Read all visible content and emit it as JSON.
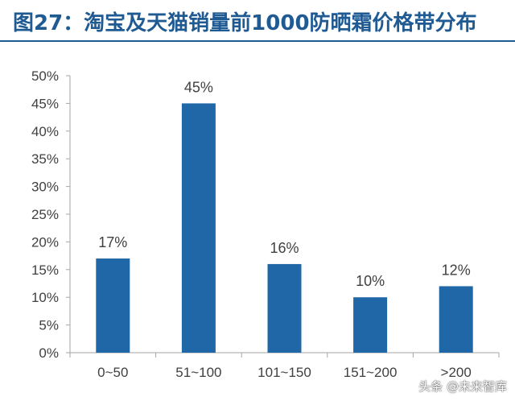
{
  "title": "图27：淘宝及天猫销量前1000防晒霜价格带分布",
  "watermark": "头条 @未来智库",
  "colors": {
    "bar": "#1f67a6",
    "title": "#1f5a93",
    "axis": "#a6a6a6",
    "text": "#404040"
  },
  "chart_data": {
    "type": "bar",
    "categories": [
      "0~50",
      "51~100",
      "101~150",
      "151~200",
      ">200"
    ],
    "values": [
      17,
      45,
      16,
      10,
      12
    ],
    "data_labels": [
      "17%",
      "45%",
      "16%",
      "10%",
      "12%"
    ],
    "ylim": [
      0,
      50
    ],
    "yticks": [
      0,
      5,
      10,
      15,
      20,
      25,
      30,
      35,
      40,
      45,
      50
    ],
    "ytick_labels": [
      "0%",
      "5%",
      "10%",
      "15%",
      "20%",
      "25%",
      "30%",
      "35%",
      "40%",
      "45%",
      "50%"
    ],
    "xlabel": "",
    "ylabel": "",
    "grid": false,
    "legend": false
  }
}
